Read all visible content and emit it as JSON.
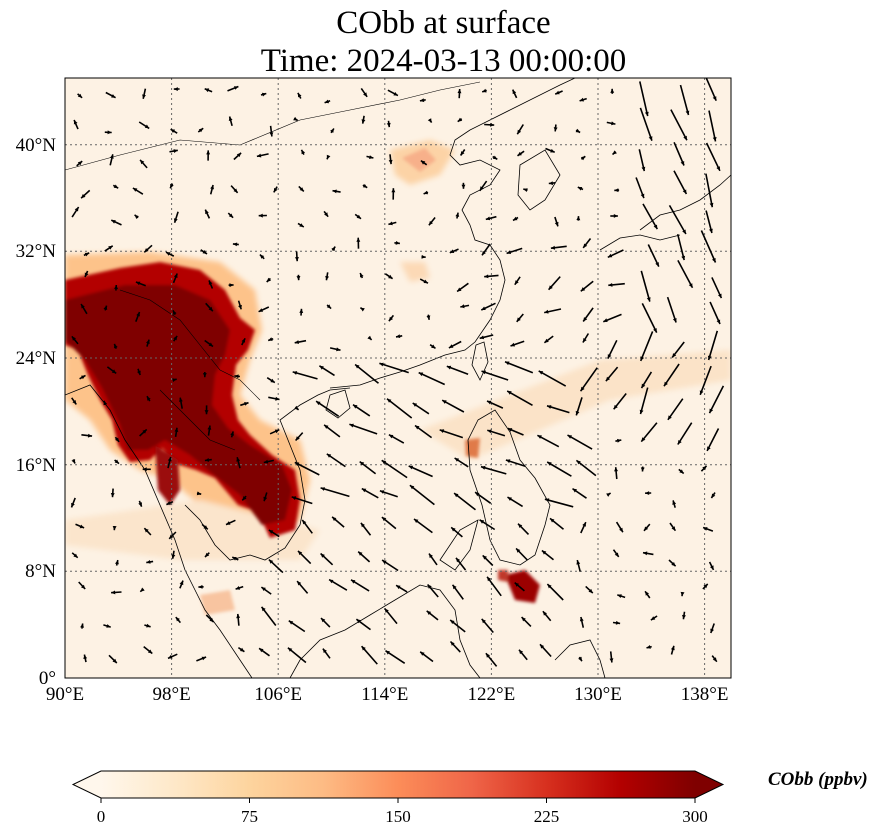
{
  "title": {
    "line1": "CObb at surface",
    "line2": "Time: 2024-03-13 00:00:00"
  },
  "map": {
    "lon_range": [
      90,
      140
    ],
    "lat_range": [
      0,
      45
    ],
    "x_ticks": [
      "90°E",
      "98°E",
      "106°E",
      "114°E",
      "122°E",
      "130°E",
      "138°E"
    ],
    "y_ticks": [
      "0°",
      "8°N",
      "16°N",
      "24°N",
      "32°N",
      "40°N"
    ],
    "gridlines": true,
    "field_colormap": "OrRd",
    "vector_field": "wind arrows"
  },
  "colorbar": {
    "label": "CObb (ppbv)",
    "ticks": [
      "0",
      "75",
      "150",
      "225",
      "300"
    ],
    "range": [
      0,
      300
    ],
    "extend": "both",
    "colors": [
      "#fff7ec",
      "#fee8c8",
      "#fdd49e",
      "#fdbb84",
      "#fc8d59",
      "#ef6548",
      "#d7301f",
      "#b30000",
      "#7f0000"
    ]
  }
}
